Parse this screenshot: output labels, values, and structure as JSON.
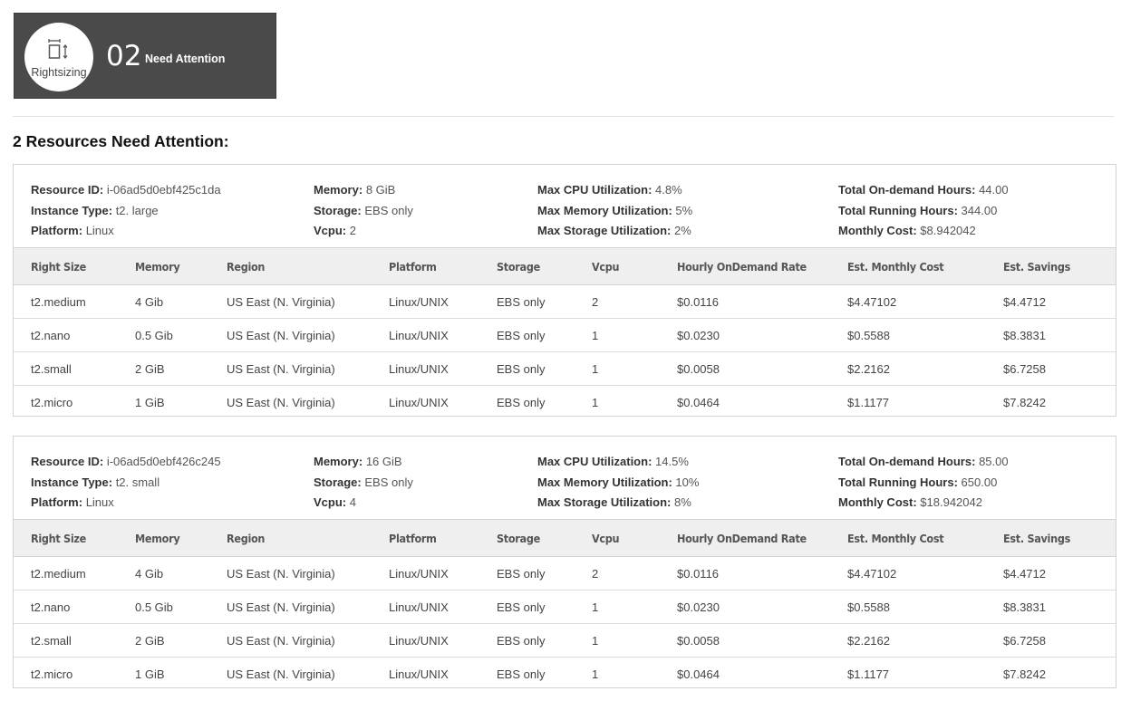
{
  "hero": {
    "category_label": "Rightsizing",
    "count": "02",
    "status_label": "Need Attention"
  },
  "page_heading": "2 Resources Need Attention:",
  "table_headers": [
    "Right Size",
    "Memory",
    "Region",
    "Platform",
    "Storage",
    "Vcpu",
    "Hourly OnDemand Rate",
    "Est. Monthly Cost",
    "Est. Savings"
  ],
  "resources": [
    {
      "summary": {
        "resource_id_label": "Resource ID:",
        "resource_id": "i-06ad5d0ebf425c1da",
        "instance_type_label": "Instance Type:",
        "instance_type": "t2. large",
        "platform_label": "Platform:",
        "platform": "Linux",
        "memory_label": "Memory:",
        "memory": "8 GiB",
        "storage_label": "Storage:",
        "storage": "EBS only",
        "vcpu_label": "Vcpu:",
        "vcpu": "2",
        "max_cpu_label": "Max CPU Utilization:",
        "max_cpu": "4.8%",
        "max_memory_label": "Max Memory Utilization:",
        "max_memory": "5%",
        "max_storage_label": "Max Storage Utilization:",
        "max_storage": "2%",
        "ondemand_hours_label": "Total On-demand Hours:",
        "ondemand_hours": "44.00",
        "running_hours_label": "Total Running Hours:",
        "running_hours": "344.00",
        "monthly_cost_label": "Monthly Cost:",
        "monthly_cost": "$8.942042"
      },
      "rows": [
        [
          "t2.medium",
          "4 Gib",
          "US East (N. Virginia)",
          "Linux/UNIX",
          "EBS only",
          "2",
          "$0.0116",
          "$4.47102",
          "$4.4712"
        ],
        [
          "t2.nano",
          "0.5 Gib",
          "US East (N. Virginia)",
          "Linux/UNIX",
          "EBS only",
          "1",
          "$0.0230",
          "$0.5588",
          "$8.3831"
        ],
        [
          "t2.small",
          "2 GiB",
          "US East (N. Virginia)",
          "Linux/UNIX",
          "EBS only",
          "1",
          "$0.0058",
          "$2.2162",
          "$6.7258"
        ],
        [
          "t2.micro",
          "1 GiB",
          "US East (N. Virginia)",
          "Linux/UNIX",
          "EBS only",
          "1",
          "$0.0464",
          "$1.1177",
          "$7.8242"
        ]
      ]
    },
    {
      "summary": {
        "resource_id_label": "Resource ID:",
        "resource_id": "i-06ad5d0ebf426c245",
        "instance_type_label": "Instance Type:",
        "instance_type": "t2. small",
        "platform_label": "Platform:",
        "platform": "Linux",
        "memory_label": "Memory:",
        "memory": "16 GiB",
        "storage_label": "Storage:",
        "storage": "EBS only",
        "vcpu_label": "Vcpu:",
        "vcpu": "4",
        "max_cpu_label": "Max CPU Utilization:",
        "max_cpu": "14.5%",
        "max_memory_label": "Max Memory Utilization:",
        "max_memory": "10%",
        "max_storage_label": "Max Storage Utilization:",
        "max_storage": "8%",
        "ondemand_hours_label": "Total On-demand Hours:",
        "ondemand_hours": "85.00",
        "running_hours_label": "Total Running Hours:",
        "running_hours": "650.00",
        "monthly_cost_label": "Monthly Cost:",
        "monthly_cost": "$18.942042"
      },
      "rows": [
        [
          "t2.medium",
          "4 Gib",
          "US East (N. Virginia)",
          "Linux/UNIX",
          "EBS only",
          "2",
          "$0.0116",
          "$4.47102",
          "$4.4712"
        ],
        [
          "t2.nano",
          "0.5 Gib",
          "US East (N. Virginia)",
          "Linux/UNIX",
          "EBS only",
          "1",
          "$0.0230",
          "$0.5588",
          "$8.3831"
        ],
        [
          "t2.small",
          "2 GiB",
          "US East (N. Virginia)",
          "Linux/UNIX",
          "EBS only",
          "1",
          "$0.0058",
          "$2.2162",
          "$6.7258"
        ],
        [
          "t2.micro",
          "1 GiB",
          "US East (N. Virginia)",
          "Linux/UNIX",
          "EBS only",
          "1",
          "$0.0464",
          "$1.1177",
          "$7.8242"
        ]
      ]
    }
  ]
}
